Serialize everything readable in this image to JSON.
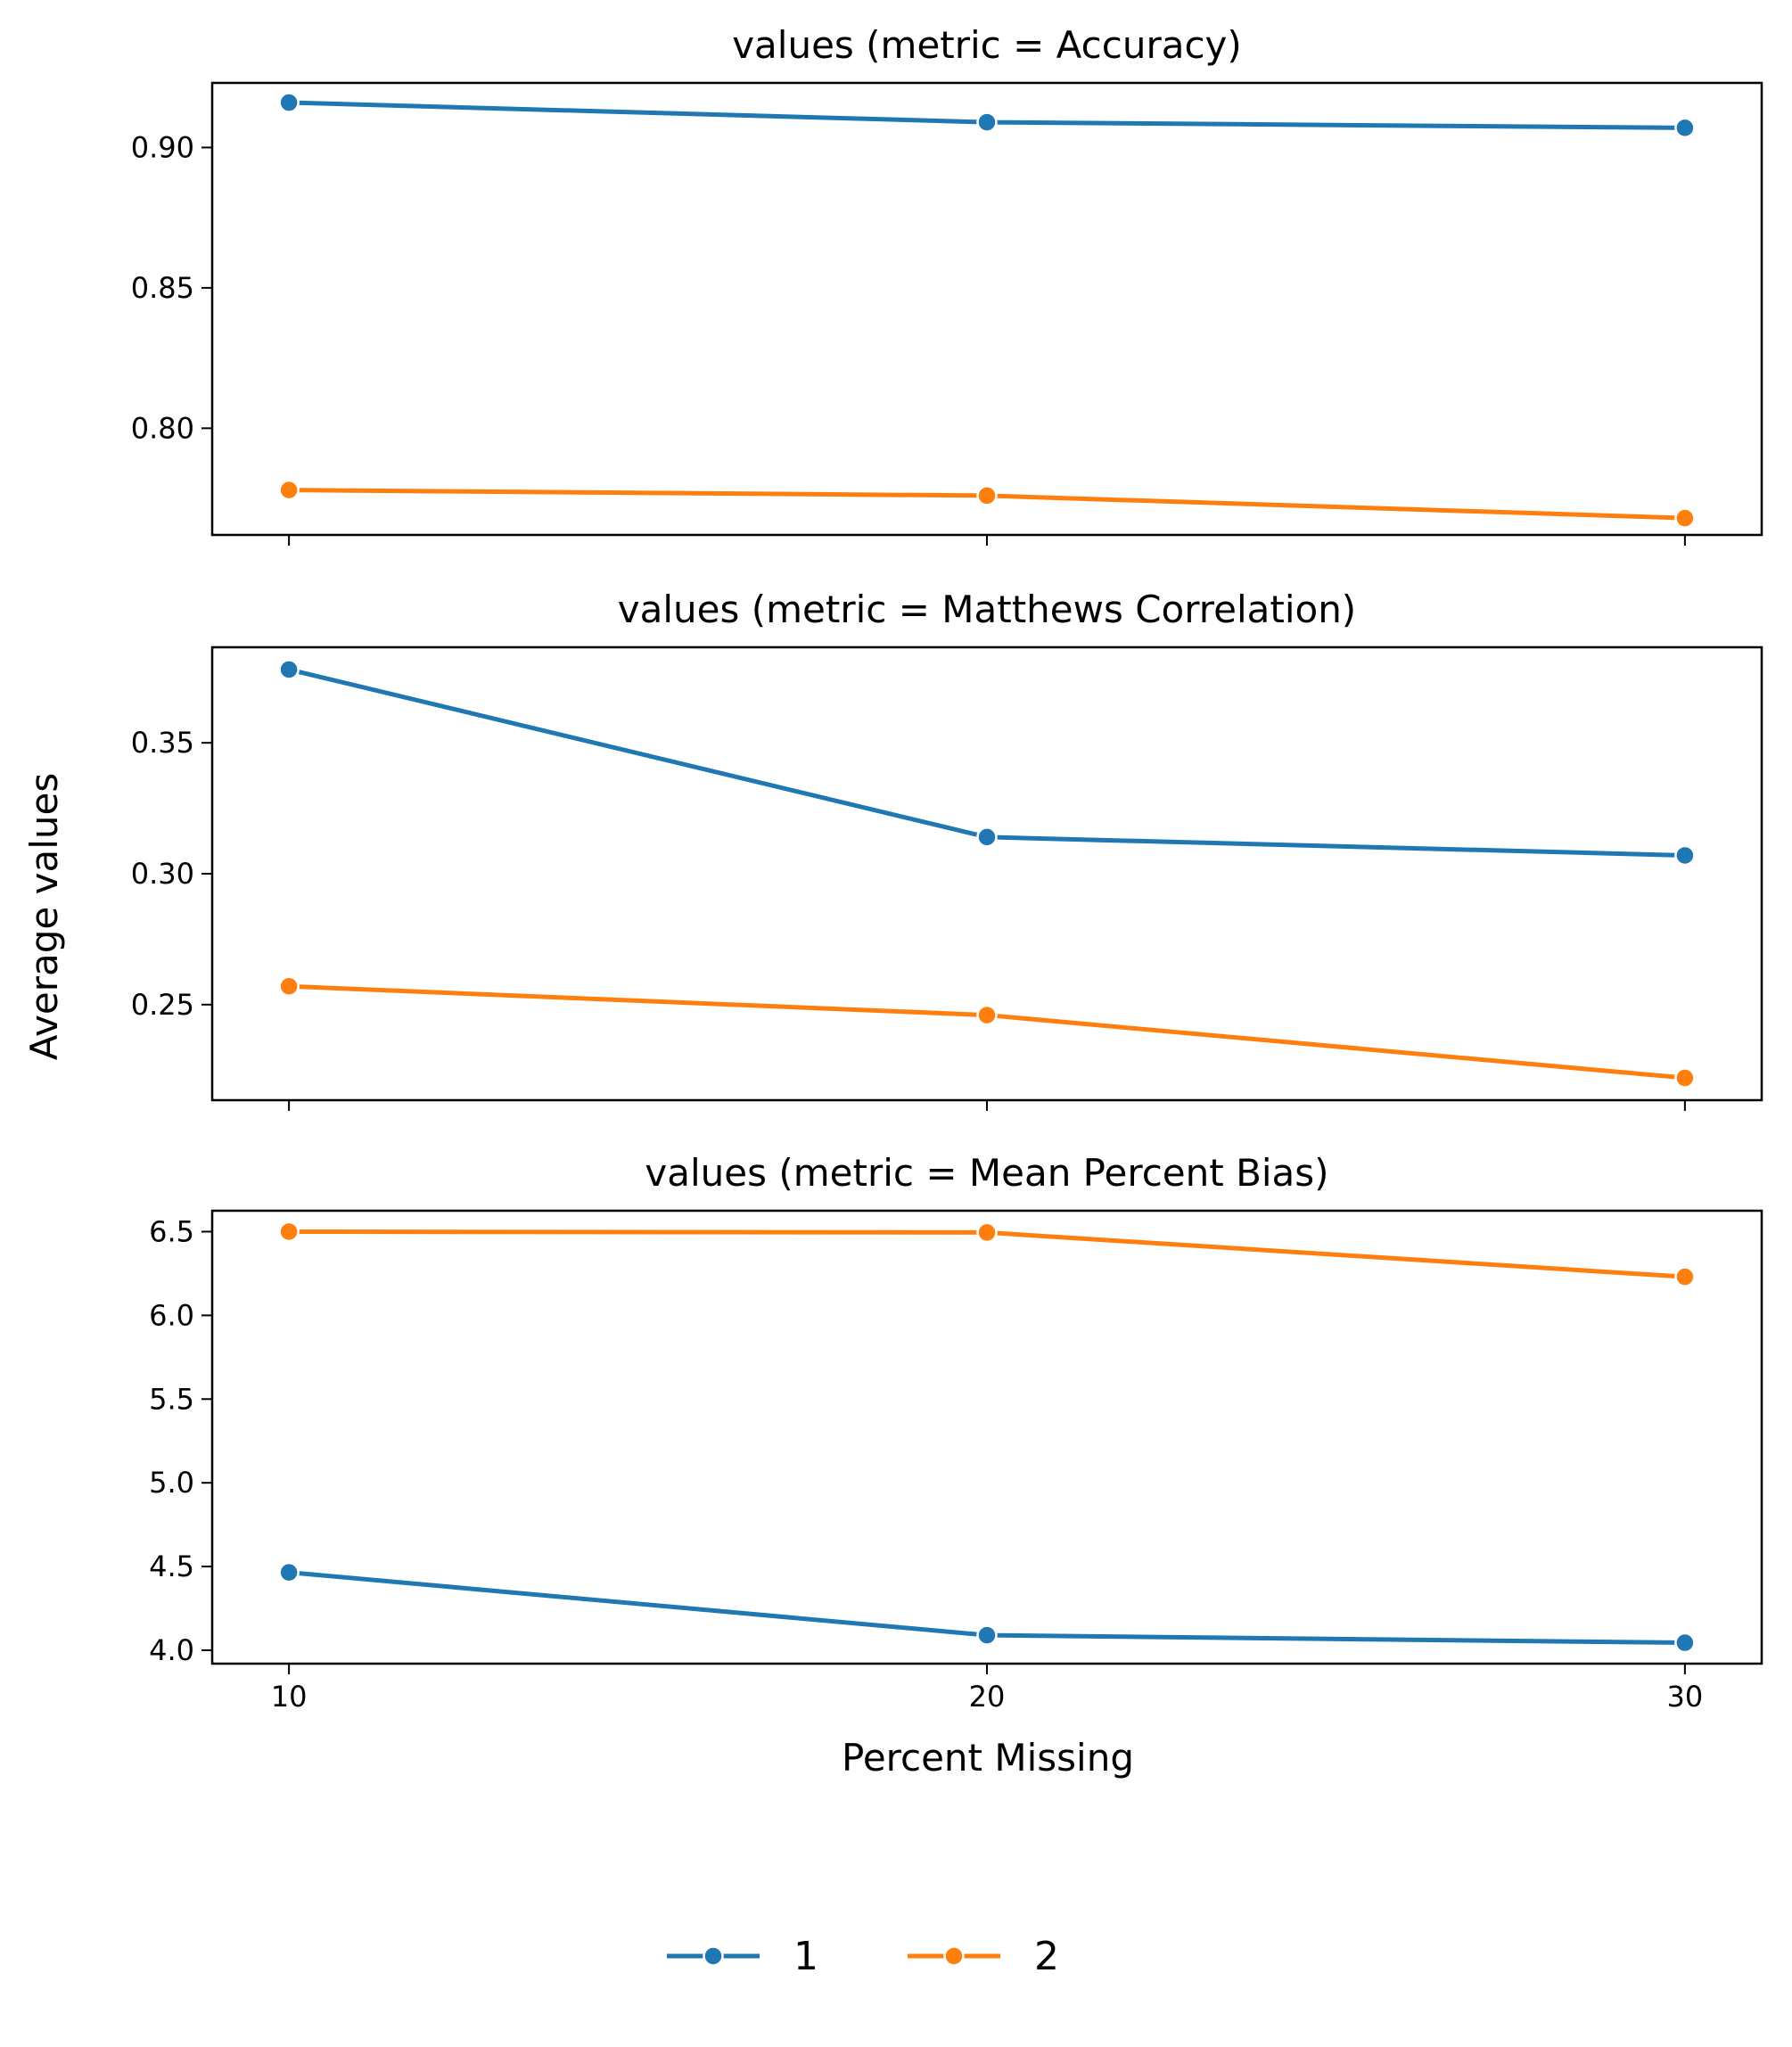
{
  "chart_data": [
    {
      "type": "line",
      "title": "values (metric = Accuracy)",
      "x": [
        10,
        20,
        30
      ],
      "series": [
        {
          "name": "1",
          "values": [
            0.916,
            0.909,
            0.907
          ]
        },
        {
          "name": "2",
          "values": [
            0.778,
            0.776,
            0.768
          ]
        }
      ],
      "ylim": [
        0.762,
        0.923
      ],
      "yticks": [
        0.8,
        0.85,
        0.9
      ],
      "ytick_labels": [
        "0.80",
        "0.85",
        "0.90"
      ],
      "xticks": [
        10,
        20,
        30
      ],
      "xtick_labels": [
        "",
        "",
        ""
      ]
    },
    {
      "type": "line",
      "title": "values (metric = Matthews Correlation)",
      "x": [
        10,
        20,
        30
      ],
      "series": [
        {
          "name": "1",
          "values": [
            0.378,
            0.314,
            0.307
          ]
        },
        {
          "name": "2",
          "values": [
            0.257,
            0.246,
            0.222
          ]
        }
      ],
      "ylim": [
        0.2135,
        0.3865
      ],
      "yticks": [
        0.25,
        0.3,
        0.35
      ],
      "ytick_labels": [
        "0.25",
        "0.30",
        "0.35"
      ],
      "xticks": [
        10,
        20,
        30
      ],
      "xtick_labels": [
        "",
        "",
        ""
      ]
    },
    {
      "type": "line",
      "title": "values (metric = Mean Percent Bias)",
      "x": [
        10,
        20,
        30
      ],
      "series": [
        {
          "name": "1",
          "values": [
            4.465,
            4.09,
            4.045
          ]
        },
        {
          "name": "2",
          "values": [
            6.5,
            6.495,
            6.23
          ]
        }
      ],
      "ylim": [
        3.92,
        6.625
      ],
      "yticks": [
        4.0,
        4.5,
        5.0,
        5.5,
        6.0,
        6.5
      ],
      "ytick_labels": [
        "4.0",
        "4.5",
        "5.0",
        "5.5",
        "6.0",
        "6.5"
      ],
      "xticks": [
        10,
        20,
        30
      ],
      "xtick_labels": [
        "10",
        "20",
        "30"
      ]
    }
  ],
  "xlim": [
    8.9,
    31.1
  ],
  "xlabel": "Percent Missing",
  "ylabel": "Average values",
  "legend": {
    "placement": "bottom-center",
    "entries": [
      {
        "label": "1",
        "color": "#1f77b4"
      },
      {
        "label": "2",
        "color": "#ff7f0e"
      }
    ]
  },
  "colors": {
    "series_1": "#1f77b4",
    "series_2": "#ff7f0e",
    "axes": "#000000"
  }
}
